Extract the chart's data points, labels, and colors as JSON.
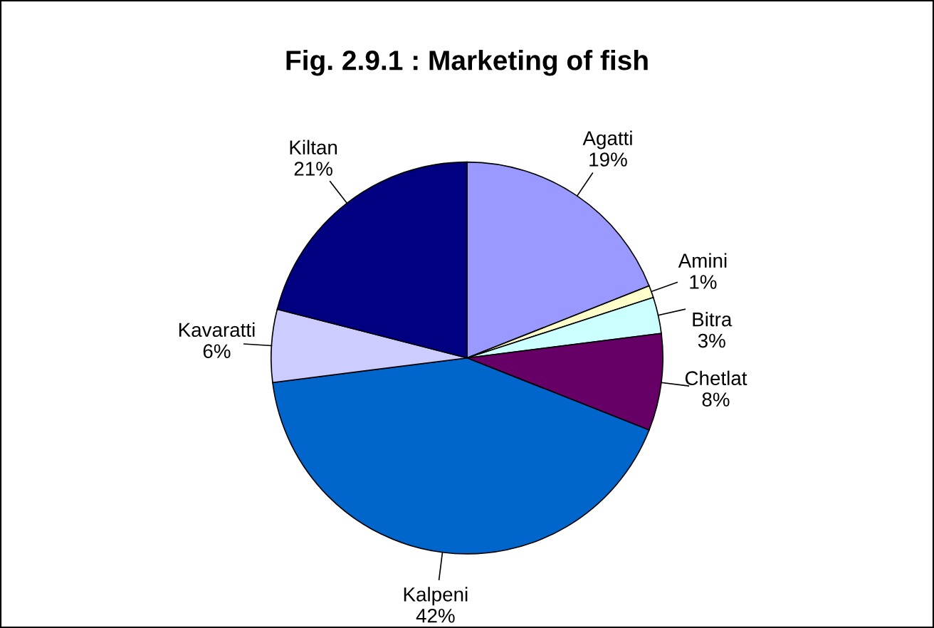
{
  "chart_data": {
    "type": "pie",
    "title": "Fig. 2.9.1 : Marketing of fish",
    "categories": [
      "Agatti",
      "Amini",
      "Bitra",
      "Chetlat",
      "Kalpeni",
      "Kavaratti",
      "Kiltan"
    ],
    "values": [
      19,
      1,
      3,
      8,
      42,
      6,
      21
    ],
    "colors": [
      "#9999ff",
      "#ffffcc",
      "#ccffff",
      "#660066",
      "#0066cc",
      "#ccccff",
      "#000080"
    ],
    "value_labels": [
      "19%",
      "1%",
      "3%",
      "8%",
      "42%",
      "6%",
      "21%"
    ],
    "legend": false
  }
}
